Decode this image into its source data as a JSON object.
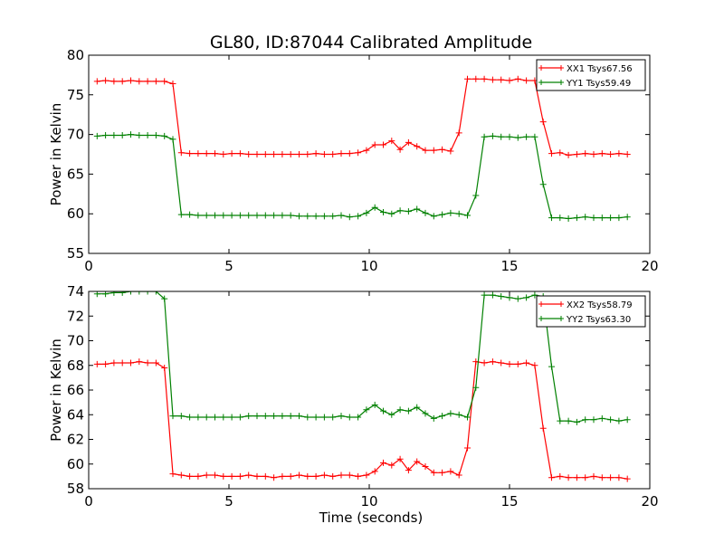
{
  "title": "GL80, ID:87044 Calibrated Amplitude",
  "xlabel": "Time (seconds)",
  "chart_data": [
    {
      "type": "line",
      "ylabel": "Power in Kelvin",
      "xlim": [
        0,
        20
      ],
      "ylim": [
        55,
        80
      ],
      "xticks": [
        0,
        5,
        10,
        15,
        20
      ],
      "yticks": [
        55,
        60,
        65,
        70,
        75,
        80
      ],
      "grid": false,
      "legend": "top-right",
      "series": [
        {
          "name": "XX1 Tsys67.56",
          "color": "#ff0000",
          "x": [
            0.3,
            0.6,
            0.9,
            1.2,
            1.5,
            1.8,
            2.1,
            2.4,
            2.7,
            3.0,
            3.3,
            3.6,
            3.9,
            4.2,
            4.5,
            4.8,
            5.1,
            5.4,
            5.7,
            6.0,
            6.3,
            6.6,
            6.9,
            7.2,
            7.5,
            7.8,
            8.1,
            8.4,
            8.7,
            9.0,
            9.3,
            9.6,
            9.9,
            10.2,
            10.5,
            10.8,
            11.1,
            11.4,
            11.7,
            12.0,
            12.3,
            12.6,
            12.9,
            13.2,
            13.5,
            13.8,
            14.1,
            14.4,
            14.7,
            15.0,
            15.3,
            15.6,
            15.9,
            16.2,
            16.5,
            16.8,
            17.1,
            17.4,
            17.7,
            18.0,
            18.3,
            18.6,
            18.9,
            19.2
          ],
          "values": [
            76.7,
            76.8,
            76.7,
            76.7,
            76.8,
            76.7,
            76.7,
            76.7,
            76.7,
            76.4,
            67.7,
            67.6,
            67.6,
            67.6,
            67.6,
            67.5,
            67.6,
            67.6,
            67.5,
            67.5,
            67.5,
            67.5,
            67.5,
            67.5,
            67.5,
            67.5,
            67.6,
            67.5,
            67.5,
            67.6,
            67.6,
            67.7,
            68.0,
            68.7,
            68.7,
            69.2,
            68.1,
            69.0,
            68.5,
            68.0,
            68.0,
            68.1,
            67.9,
            70.2,
            77.0,
            77.0,
            77.0,
            76.9,
            76.9,
            76.8,
            77.0,
            76.8,
            76.8,
            71.6,
            67.6,
            67.7,
            67.4,
            67.5,
            67.6,
            67.5,
            67.6,
            67.5,
            67.6,
            67.5
          ]
        },
        {
          "name": "YY1 Tsys59.49",
          "color": "#008000",
          "x": [
            0.3,
            0.6,
            0.9,
            1.2,
            1.5,
            1.8,
            2.1,
            2.4,
            2.7,
            3.0,
            3.3,
            3.6,
            3.9,
            4.2,
            4.5,
            4.8,
            5.1,
            5.4,
            5.7,
            6.0,
            6.3,
            6.6,
            6.9,
            7.2,
            7.5,
            7.8,
            8.1,
            8.4,
            8.7,
            9.0,
            9.3,
            9.6,
            9.9,
            10.2,
            10.5,
            10.8,
            11.1,
            11.4,
            11.7,
            12.0,
            12.3,
            12.6,
            12.9,
            13.2,
            13.5,
            13.8,
            14.1,
            14.4,
            14.7,
            15.0,
            15.3,
            15.6,
            15.9,
            16.2,
            16.5,
            16.8,
            17.1,
            17.4,
            17.7,
            18.0,
            18.3,
            18.6,
            18.9,
            19.2
          ],
          "values": [
            69.8,
            69.9,
            69.9,
            69.9,
            70.0,
            69.9,
            69.9,
            69.9,
            69.8,
            69.4,
            59.9,
            59.9,
            59.8,
            59.8,
            59.8,
            59.8,
            59.8,
            59.8,
            59.8,
            59.8,
            59.8,
            59.8,
            59.8,
            59.8,
            59.7,
            59.7,
            59.7,
            59.7,
            59.7,
            59.8,
            59.6,
            59.7,
            60.1,
            60.8,
            60.2,
            60.0,
            60.4,
            60.3,
            60.6,
            60.1,
            59.7,
            59.9,
            60.1,
            60.0,
            59.8,
            62.3,
            69.7,
            69.8,
            69.7,
            69.7,
            69.6,
            69.7,
            69.7,
            63.7,
            59.5,
            59.5,
            59.4,
            59.5,
            59.6,
            59.5,
            59.5,
            59.5,
            59.5,
            59.6
          ]
        }
      ]
    },
    {
      "type": "line",
      "ylabel": "Power in Kelvin",
      "xlim": [
        0,
        20
      ],
      "ylim": [
        58,
        74
      ],
      "xticks": [
        0,
        5,
        10,
        15,
        20
      ],
      "yticks": [
        58,
        60,
        62,
        64,
        66,
        68,
        70,
        72,
        74
      ],
      "grid": false,
      "legend": "top-right",
      "series": [
        {
          "name": "XX2 Tsys58.79",
          "color": "#ff0000",
          "x": [
            0.3,
            0.6,
            0.9,
            1.2,
            1.5,
            1.8,
            2.1,
            2.4,
            2.7,
            3.0,
            3.3,
            3.6,
            3.9,
            4.2,
            4.5,
            4.8,
            5.1,
            5.4,
            5.7,
            6.0,
            6.3,
            6.6,
            6.9,
            7.2,
            7.5,
            7.8,
            8.1,
            8.4,
            8.7,
            9.0,
            9.3,
            9.6,
            9.9,
            10.2,
            10.5,
            10.8,
            11.1,
            11.4,
            11.7,
            12.0,
            12.3,
            12.6,
            12.9,
            13.2,
            13.5,
            13.8,
            14.1,
            14.4,
            14.7,
            15.0,
            15.3,
            15.6,
            15.9,
            16.2,
            16.5,
            16.8,
            17.1,
            17.4,
            17.7,
            18.0,
            18.3,
            18.6,
            18.9,
            19.2
          ],
          "values": [
            68.1,
            68.1,
            68.2,
            68.2,
            68.2,
            68.3,
            68.2,
            68.2,
            67.8,
            59.2,
            59.1,
            59.0,
            59.0,
            59.1,
            59.1,
            59.0,
            59.0,
            59.0,
            59.1,
            59.0,
            59.0,
            58.9,
            59.0,
            59.0,
            59.1,
            59.0,
            59.0,
            59.1,
            59.0,
            59.1,
            59.1,
            59.0,
            59.1,
            59.4,
            60.1,
            59.9,
            60.4,
            59.5,
            60.2,
            59.8,
            59.3,
            59.3,
            59.4,
            59.1,
            61.3,
            68.3,
            68.2,
            68.3,
            68.2,
            68.1,
            68.1,
            68.2,
            68.0,
            62.9,
            58.9,
            59.0,
            58.9,
            58.9,
            58.9,
            59.0,
            58.9,
            58.9,
            58.9,
            58.8
          ]
        },
        {
          "name": "YY2 Tsys63.30",
          "color": "#008000",
          "x": [
            0.3,
            0.6,
            0.9,
            1.2,
            1.5,
            1.8,
            2.1,
            2.4,
            2.7,
            3.0,
            3.3,
            3.6,
            3.9,
            4.2,
            4.5,
            4.8,
            5.1,
            5.4,
            5.7,
            6.0,
            6.3,
            6.6,
            6.9,
            7.2,
            7.5,
            7.8,
            8.1,
            8.4,
            8.7,
            9.0,
            9.3,
            9.6,
            9.9,
            10.2,
            10.5,
            10.8,
            11.1,
            11.4,
            11.7,
            12.0,
            12.3,
            12.6,
            12.9,
            13.2,
            13.5,
            13.8,
            14.1,
            14.4,
            14.7,
            15.0,
            15.3,
            15.6,
            15.9,
            16.2,
            16.5,
            16.8,
            17.1,
            17.4,
            17.7,
            18.0,
            18.3,
            18.6,
            18.9,
            19.2
          ],
          "values": [
            73.8,
            73.8,
            73.9,
            73.9,
            74.0,
            74.0,
            74.0,
            74.0,
            73.4,
            63.9,
            63.9,
            63.8,
            63.8,
            63.8,
            63.8,
            63.8,
            63.8,
            63.8,
            63.9,
            63.9,
            63.9,
            63.9,
            63.9,
            63.9,
            63.9,
            63.8,
            63.8,
            63.8,
            63.8,
            63.9,
            63.8,
            63.8,
            64.4,
            64.8,
            64.3,
            64.0,
            64.4,
            64.3,
            64.6,
            64.1,
            63.7,
            63.9,
            64.1,
            64.0,
            63.8,
            66.2,
            73.7,
            73.7,
            73.6,
            73.5,
            73.4,
            73.5,
            73.7,
            73.6,
            67.9,
            63.5,
            63.5,
            63.4,
            63.6,
            63.6,
            63.7,
            63.6,
            63.5,
            63.6
          ]
        }
      ]
    }
  ]
}
